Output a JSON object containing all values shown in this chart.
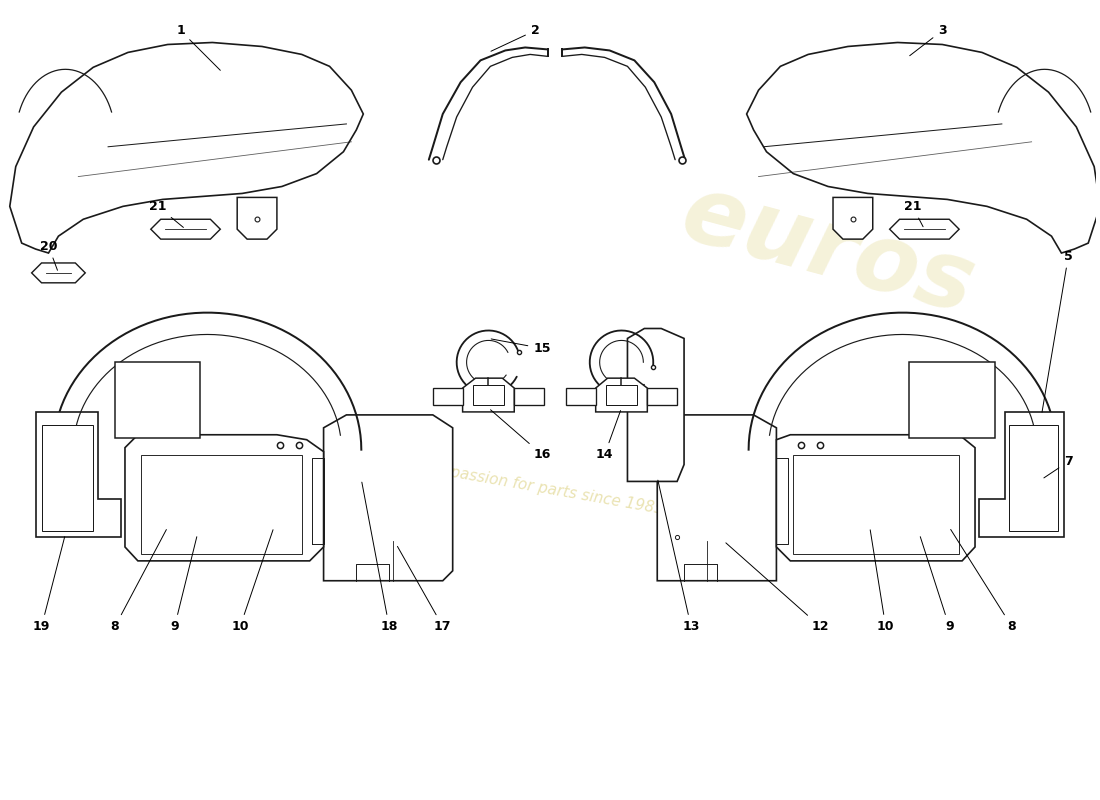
{
  "background_color": "#ffffff",
  "line_color": "#1a1a1a",
  "lw": 1.2,
  "label_fs": 9,
  "wm_color1": "#c8b535",
  "wm_color2": "#d4c455"
}
